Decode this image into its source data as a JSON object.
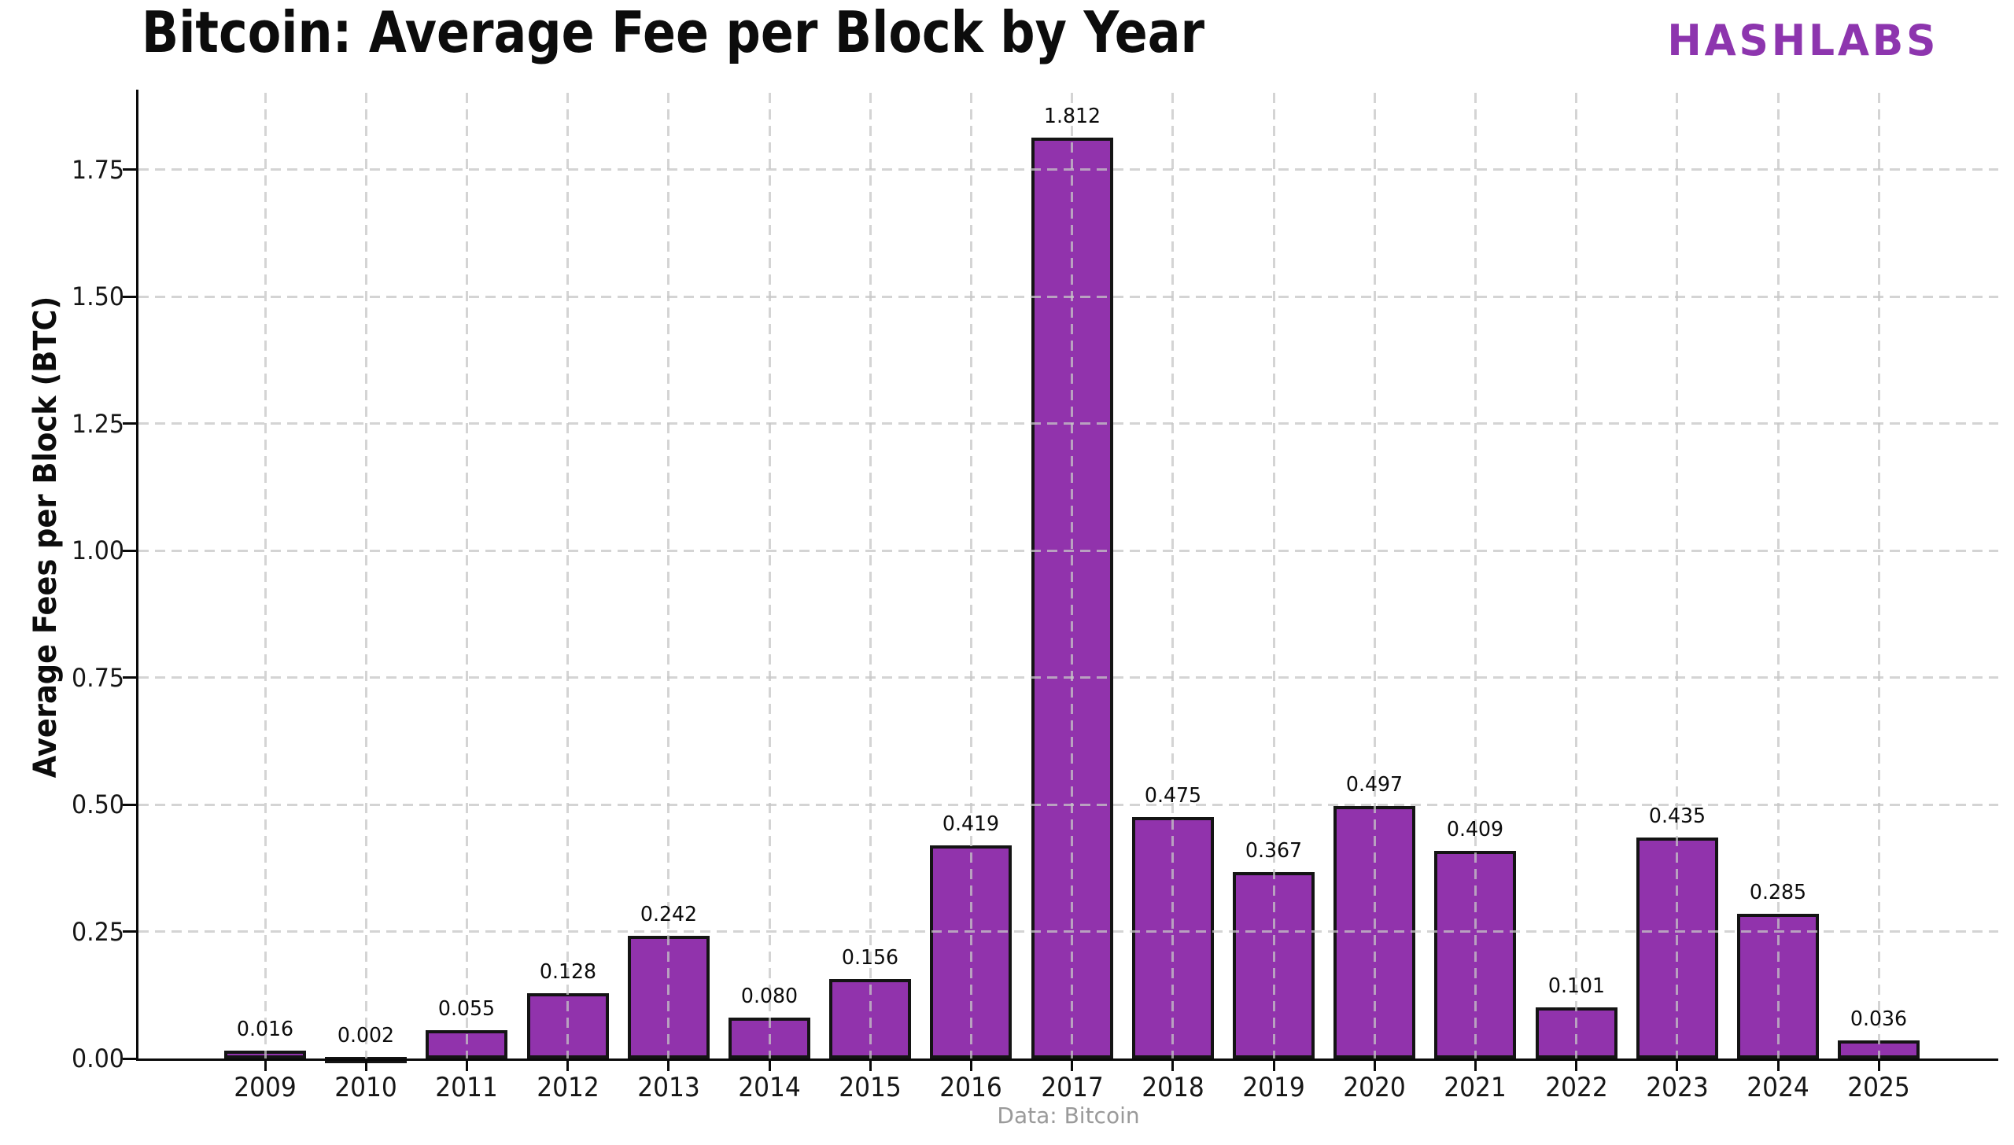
{
  "header": {
    "title": "Bitcoin: Average Fee per Block by Year",
    "brand": "HASHLABS"
  },
  "footer": {
    "source": "Data: Bitcoin"
  },
  "colors": {
    "bar_fill": "#9133AC",
    "bar_edge": "#141414",
    "brand_purple": "#8D35AE",
    "grid": "rgba(198,198,198,0.75)",
    "axis": "#0a0a0a",
    "footer_text": "#9a9a9a",
    "text": "#0c0c0c"
  },
  "chart_data": {
    "type": "bar",
    "title": "Bitcoin: Average Fee per Block by Year",
    "xlabel": "",
    "ylabel": "Average Fees per Block (BTC)",
    "categories": [
      "2009",
      "2010",
      "2011",
      "2012",
      "2013",
      "2014",
      "2015",
      "2016",
      "2017",
      "2018",
      "2019",
      "2020",
      "2021",
      "2022",
      "2023",
      "2024",
      "2025"
    ],
    "values": [
      0.016,
      0.002,
      0.055,
      0.128,
      0.242,
      0.08,
      0.156,
      0.419,
      1.812,
      0.475,
      0.367,
      0.497,
      0.409,
      0.101,
      0.435,
      0.285,
      0.036
    ],
    "bar_labels": [
      "0.016",
      "0.002",
      "0.055",
      "0.128",
      "0.242",
      "0.080",
      "0.156",
      "0.419",
      "1.812",
      "0.475",
      "0.367",
      "0.497",
      "0.409",
      "0.101",
      "0.435",
      "0.285",
      "0.036"
    ],
    "yticks": {
      "values": [
        0.0,
        0.25,
        0.5,
        0.75,
        1.0,
        1.25,
        1.5,
        1.75
      ],
      "labels": [
        "0.00",
        "0.25",
        "0.50",
        "0.75",
        "1.00",
        "1.25",
        "1.50",
        "1.75"
      ]
    },
    "ylim": [
      0,
      1.906
    ],
    "grid": "dashed, both axes, drawn over bars",
    "legend": "none",
    "annotation": "Data: Bitcoin"
  }
}
